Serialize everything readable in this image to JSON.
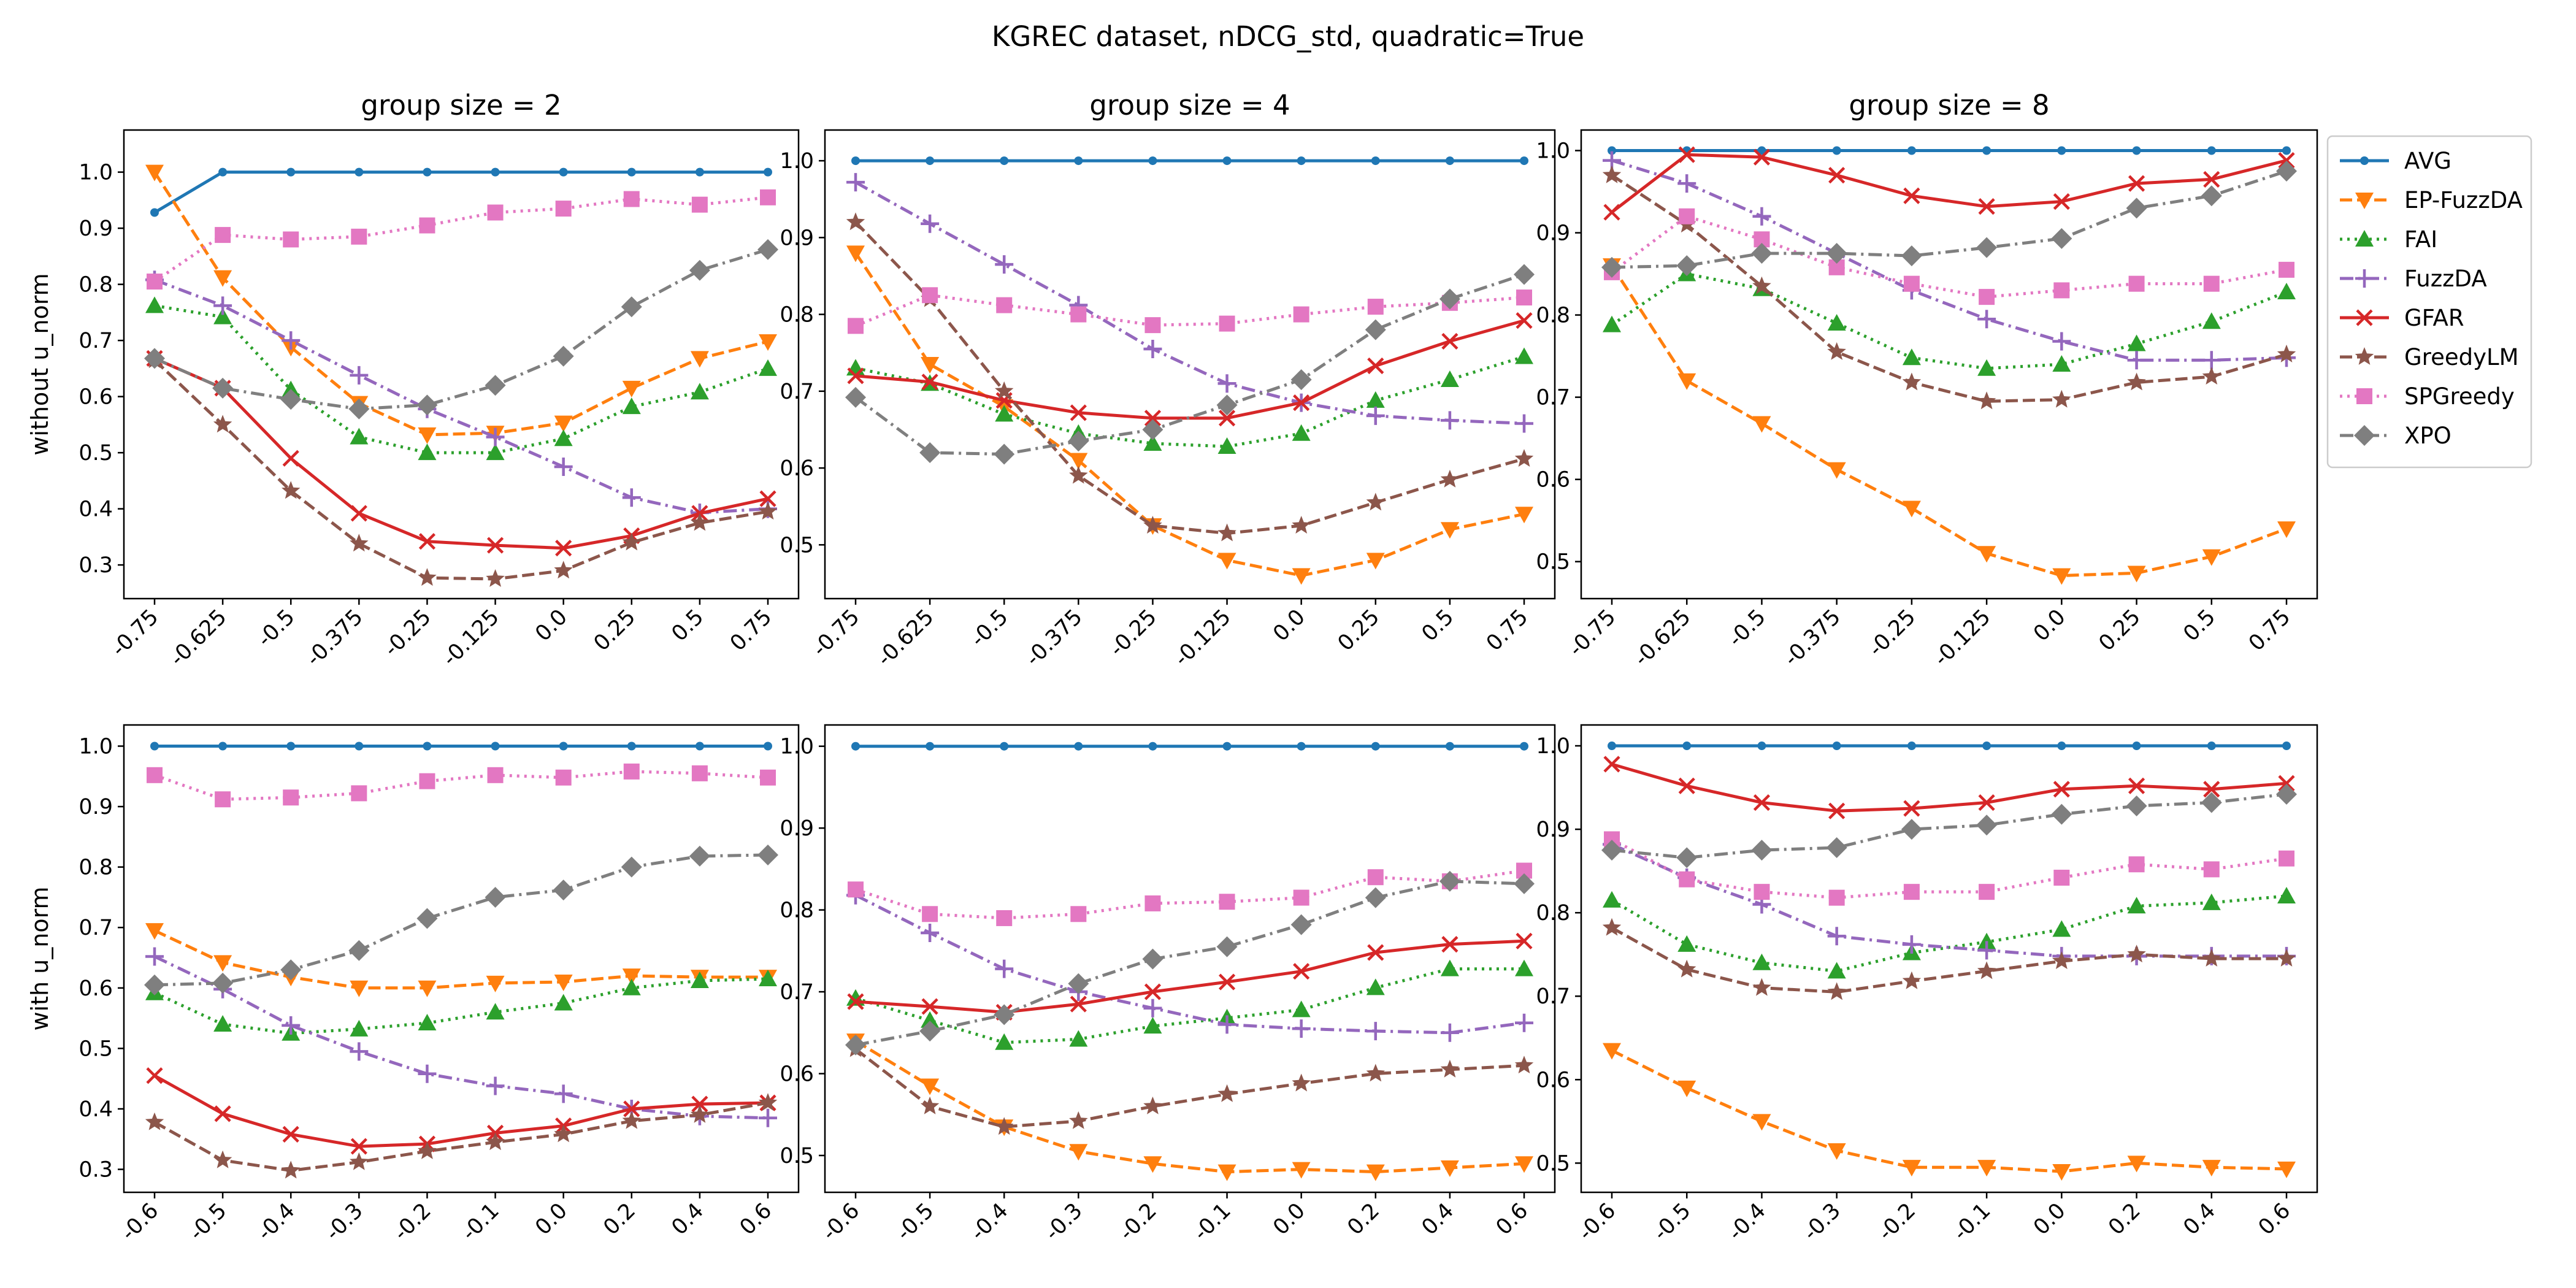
{
  "figure_title": "KGREC dataset, nDCG_std, quadratic=True",
  "chart_data": [
    {
      "type": "line",
      "title": "group size = 2",
      "ylabel": "without u_norm",
      "categories": [
        "-0.75",
        "-0.625",
        "-0.5",
        "-0.375",
        "-0.25",
        "-0.125",
        "0.0",
        "0.25",
        "0.5",
        "0.75"
      ],
      "ylim": [
        0.24,
        1.075
      ],
      "yticks": [
        "0.3",
        "0.4",
        "0.5",
        "0.6",
        "0.7",
        "0.8",
        "0.9",
        "1.0"
      ],
      "series": [
        {
          "name": "AVG",
          "values": [
            0.928,
            1.0,
            1.0,
            1.0,
            1.0,
            1.0,
            1.0,
            1.0,
            1.0,
            1.0
          ]
        },
        {
          "name": "EP-FuzzDA",
          "values": [
            1.0,
            0.812,
            0.688,
            0.588,
            0.532,
            0.535,
            0.553,
            0.615,
            0.668,
            0.698
          ]
        },
        {
          "name": "FAI",
          "values": [
            0.762,
            0.742,
            0.612,
            0.528,
            0.5,
            0.5,
            0.525,
            0.582,
            0.608,
            0.65
          ]
        },
        {
          "name": "FuzzDA",
          "values": [
            0.808,
            0.762,
            0.7,
            0.638,
            0.578,
            0.528,
            0.475,
            0.42,
            0.393,
            0.4
          ]
        },
        {
          "name": "GFAR",
          "values": [
            0.668,
            0.615,
            0.49,
            0.392,
            0.342,
            0.335,
            0.33,
            0.352,
            0.392,
            0.418
          ]
        },
        {
          "name": "GreedyLM",
          "values": [
            0.665,
            0.55,
            0.432,
            0.338,
            0.277,
            0.275,
            0.29,
            0.34,
            0.375,
            0.395
          ]
        },
        {
          "name": "SPGreedy",
          "values": [
            0.805,
            0.888,
            0.88,
            0.885,
            0.905,
            0.928,
            0.935,
            0.952,
            0.942,
            0.955
          ]
        },
        {
          "name": "XPO",
          "values": [
            0.668,
            0.615,
            0.595,
            0.578,
            0.585,
            0.62,
            0.672,
            0.76,
            0.825,
            0.862
          ]
        }
      ]
    },
    {
      "type": "line",
      "title": "group size = 4",
      "ylabel": "",
      "categories": [
        "-0.75",
        "-0.625",
        "-0.5",
        "-0.375",
        "-0.25",
        "-0.125",
        "0.0",
        "0.25",
        "0.5",
        "0.75"
      ],
      "ylim": [
        0.43,
        1.04
      ],
      "yticks": [
        "0.5",
        "0.6",
        "0.7",
        "0.8",
        "0.9",
        "1.0"
      ],
      "series": [
        {
          "name": "AVG",
          "values": [
            1.0,
            1.0,
            1.0,
            1.0,
            1.0,
            1.0,
            1.0,
            1.0,
            1.0,
            1.0
          ]
        },
        {
          "name": "EP-FuzzDA",
          "values": [
            0.88,
            0.735,
            0.68,
            0.61,
            0.525,
            0.48,
            0.46,
            0.48,
            0.52,
            0.54
          ]
        },
        {
          "name": "FAI",
          "values": [
            0.73,
            0.71,
            0.67,
            0.645,
            0.632,
            0.628,
            0.645,
            0.688,
            0.715,
            0.745
          ]
        },
        {
          "name": "FuzzDA",
          "values": [
            0.972,
            0.918,
            0.865,
            0.812,
            0.755,
            0.71,
            0.685,
            0.668,
            0.662,
            0.658
          ]
        },
        {
          "name": "GFAR",
          "values": [
            0.72,
            0.712,
            0.688,
            0.672,
            0.665,
            0.665,
            0.685,
            0.733,
            0.765,
            0.792
          ]
        },
        {
          "name": "GreedyLM",
          "values": [
            0.92,
            0.82,
            0.7,
            0.59,
            0.525,
            0.515,
            0.525,
            0.555,
            0.585,
            0.612
          ]
        },
        {
          "name": "SPGreedy",
          "values": [
            0.785,
            0.825,
            0.812,
            0.8,
            0.786,
            0.788,
            0.8,
            0.81,
            0.815,
            0.822
          ]
        },
        {
          "name": "XPO",
          "values": [
            0.692,
            0.62,
            0.618,
            0.635,
            0.65,
            0.682,
            0.715,
            0.78,
            0.82,
            0.852
          ]
        }
      ]
    },
    {
      "type": "line",
      "title": "group size = 8",
      "ylabel": "",
      "categories": [
        "-0.75",
        "-0.625",
        "-0.5",
        "-0.375",
        "-0.25",
        "-0.125",
        "0.0",
        "0.25",
        "0.5",
        "0.75"
      ],
      "ylim": [
        0.455,
        1.025
      ],
      "yticks": [
        "0.5",
        "0.6",
        "0.7",
        "0.8",
        "0.9",
        "1.0"
      ],
      "series": [
        {
          "name": "AVG",
          "values": [
            1.0,
            1.0,
            1.0,
            1.0,
            1.0,
            1.0,
            1.0,
            1.0,
            1.0,
            1.0
          ]
        },
        {
          "name": "EP-FuzzDA",
          "values": [
            0.86,
            0.72,
            0.668,
            0.612,
            0.565,
            0.51,
            0.483,
            0.486,
            0.506,
            0.54
          ]
        },
        {
          "name": "FAI",
          "values": [
            0.788,
            0.85,
            0.832,
            0.79,
            0.748,
            0.735,
            0.74,
            0.765,
            0.792,
            0.828
          ]
        },
        {
          "name": "FuzzDA",
          "values": [
            0.988,
            0.96,
            0.92,
            0.875,
            0.83,
            0.795,
            0.768,
            0.745,
            0.745,
            0.748
          ]
        },
        {
          "name": "GFAR",
          "values": [
            0.925,
            0.995,
            0.992,
            0.97,
            0.945,
            0.932,
            0.938,
            0.96,
            0.965,
            0.988
          ]
        },
        {
          "name": "GreedyLM",
          "values": [
            0.97,
            0.91,
            0.835,
            0.755,
            0.718,
            0.695,
            0.697,
            0.718,
            0.725,
            0.752
          ]
        },
        {
          "name": "SPGreedy",
          "values": [
            0.852,
            0.92,
            0.892,
            0.858,
            0.838,
            0.822,
            0.83,
            0.838,
            0.838,
            0.855
          ]
        },
        {
          "name": "XPO",
          "values": [
            0.858,
            0.86,
            0.875,
            0.875,
            0.872,
            0.882,
            0.893,
            0.93,
            0.945,
            0.975
          ]
        }
      ]
    },
    {
      "type": "line",
      "title": "",
      "ylabel": "with u_norm",
      "categories": [
        "-0.6",
        "-0.5",
        "-0.4",
        "-0.3",
        "-0.2",
        "-0.1",
        "0.0",
        "0.2",
        "0.4",
        "0.6"
      ],
      "ylim": [
        0.262,
        1.035
      ],
      "yticks": [
        "0.3",
        "0.4",
        "0.5",
        "0.6",
        "0.7",
        "0.8",
        "0.9",
        "1.0"
      ],
      "series": [
        {
          "name": "AVG",
          "values": [
            1.0,
            1.0,
            1.0,
            1.0,
            1.0,
            1.0,
            1.0,
            1.0,
            1.0,
            1.0
          ]
        },
        {
          "name": "EP-FuzzDA",
          "values": [
            0.695,
            0.642,
            0.618,
            0.6,
            0.6,
            0.608,
            0.61,
            0.62,
            0.618,
            0.618
          ]
        },
        {
          "name": "FAI",
          "values": [
            0.592,
            0.54,
            0.525,
            0.532,
            0.542,
            0.56,
            0.575,
            0.6,
            0.612,
            0.615
          ]
        },
        {
          "name": "FuzzDA",
          "values": [
            0.652,
            0.598,
            0.538,
            0.495,
            0.458,
            0.438,
            0.425,
            0.4,
            0.388,
            0.385
          ]
        },
        {
          "name": "GFAR",
          "values": [
            0.455,
            0.392,
            0.358,
            0.338,
            0.342,
            0.36,
            0.372,
            0.4,
            0.408,
            0.41
          ]
        },
        {
          "name": "GreedyLM",
          "values": [
            0.378,
            0.315,
            0.298,
            0.312,
            0.33,
            0.345,
            0.358,
            0.38,
            0.39,
            0.41
          ]
        },
        {
          "name": "SPGreedy",
          "values": [
            0.952,
            0.912,
            0.915,
            0.922,
            0.942,
            0.952,
            0.948,
            0.958,
            0.955,
            0.948
          ]
        },
        {
          "name": "XPO",
          "values": [
            0.605,
            0.608,
            0.63,
            0.662,
            0.715,
            0.75,
            0.762,
            0.8,
            0.818,
            0.82
          ]
        }
      ]
    },
    {
      "type": "line",
      "title": "",
      "ylabel": "",
      "categories": [
        "-0.6",
        "-0.5",
        "-0.4",
        "-0.3",
        "-0.2",
        "-0.1",
        "0.0",
        "0.2",
        "0.4",
        "0.6"
      ],
      "ylim": [
        0.455,
        1.026
      ],
      "yticks": [
        "0.5",
        "0.6",
        "0.7",
        "0.8",
        "0.9",
        "1.0"
      ],
      "series": [
        {
          "name": "AVG",
          "values": [
            1.0,
            1.0,
            1.0,
            1.0,
            1.0,
            1.0,
            1.0,
            1.0,
            1.0,
            1.0
          ]
        },
        {
          "name": "EP-FuzzDA",
          "values": [
            0.64,
            0.585,
            0.535,
            0.505,
            0.49,
            0.48,
            0.483,
            0.48,
            0.485,
            0.49
          ]
        },
        {
          "name": "FAI",
          "values": [
            0.692,
            0.665,
            0.638,
            0.642,
            0.658,
            0.668,
            0.678,
            0.705,
            0.728,
            0.728
          ]
        },
        {
          "name": "FuzzDA",
          "values": [
            0.818,
            0.772,
            0.728,
            0.7,
            0.68,
            0.66,
            0.655,
            0.652,
            0.65,
            0.662
          ]
        },
        {
          "name": "GFAR",
          "values": [
            0.688,
            0.682,
            0.675,
            0.685,
            0.7,
            0.712,
            0.725,
            0.748,
            0.758,
            0.762
          ]
        },
        {
          "name": "GreedyLM",
          "values": [
            0.63,
            0.56,
            0.535,
            0.542,
            0.56,
            0.575,
            0.588,
            0.6,
            0.605,
            0.61
          ]
        },
        {
          "name": "SPGreedy",
          "values": [
            0.825,
            0.795,
            0.79,
            0.795,
            0.808,
            0.81,
            0.815,
            0.84,
            0.835,
            0.848
          ]
        },
        {
          "name": "XPO",
          "values": [
            0.635,
            0.652,
            0.672,
            0.71,
            0.74,
            0.755,
            0.782,
            0.815,
            0.835,
            0.832
          ]
        }
      ]
    },
    {
      "type": "line",
      "title": "",
      "ylabel": "",
      "categories": [
        "-0.6",
        "-0.5",
        "-0.4",
        "-0.3",
        "-0.2",
        "-0.1",
        "0.0",
        "0.2",
        "0.4",
        "0.6"
      ],
      "ylim": [
        0.465,
        1.025
      ],
      "yticks": [
        "0.5",
        "0.6",
        "0.7",
        "0.8",
        "0.9",
        "1.0"
      ],
      "series": [
        {
          "name": "AVG",
          "values": [
            1.0,
            1.0,
            1.0,
            1.0,
            1.0,
            1.0,
            1.0,
            1.0,
            1.0,
            1.0
          ]
        },
        {
          "name": "EP-FuzzDA",
          "values": [
            0.635,
            0.59,
            0.55,
            0.515,
            0.495,
            0.495,
            0.49,
            0.5,
            0.495,
            0.493
          ]
        },
        {
          "name": "FAI",
          "values": [
            0.815,
            0.762,
            0.74,
            0.73,
            0.752,
            0.765,
            0.78,
            0.808,
            0.812,
            0.82
          ]
        },
        {
          "name": "FuzzDA",
          "values": [
            0.882,
            0.842,
            0.81,
            0.772,
            0.762,
            0.755,
            0.748,
            0.748,
            0.748,
            0.748
          ]
        },
        {
          "name": "GFAR",
          "values": [
            0.978,
            0.952,
            0.932,
            0.922,
            0.925,
            0.932,
            0.948,
            0.952,
            0.948,
            0.955
          ]
        },
        {
          "name": "GreedyLM",
          "values": [
            0.782,
            0.732,
            0.71,
            0.705,
            0.718,
            0.73,
            0.742,
            0.75,
            0.745,
            0.745
          ]
        },
        {
          "name": "SPGreedy",
          "values": [
            0.888,
            0.84,
            0.825,
            0.818,
            0.825,
            0.825,
            0.842,
            0.858,
            0.852,
            0.865
          ]
        },
        {
          "name": "XPO",
          "values": [
            0.875,
            0.866,
            0.875,
            0.878,
            0.9,
            0.905,
            0.918,
            0.928,
            0.932,
            0.942
          ]
        }
      ]
    }
  ],
  "legend": {
    "placement": "right",
    "entries": [
      "AVG",
      "EP-FuzzDA",
      "FAI",
      "FuzzDA",
      "GFAR",
      "GreedyLM",
      "SPGreedy",
      "XPO"
    ]
  },
  "styles": {
    "AVG": {
      "color": "#1f77b4",
      "dash": "solid",
      "marker": "point"
    },
    "EP-FuzzDA": {
      "color": "#ff7f0e",
      "dash": "dashed",
      "marker": "triangle-down"
    },
    "FAI": {
      "color": "#2ca02c",
      "dash": "dotted",
      "marker": "triangle-up"
    },
    "FuzzDA": {
      "color": "#9467bd",
      "dash": "dashdot",
      "marker": "plus"
    },
    "GFAR": {
      "color": "#d62728",
      "dash": "solid",
      "marker": "x"
    },
    "GreedyLM": {
      "color": "#8c564b",
      "dash": "dashed",
      "marker": "star"
    },
    "SPGreedy": {
      "color": "#e377c2",
      "dash": "dotted",
      "marker": "square"
    },
    "XPO": {
      "color": "#7f7f7f",
      "dash": "dashdot",
      "marker": "diamond"
    }
  }
}
